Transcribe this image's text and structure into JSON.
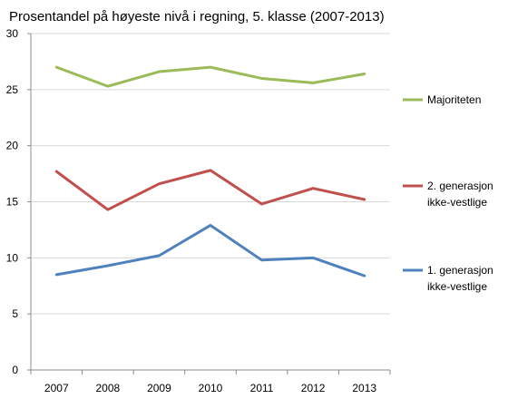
{
  "chart_data": {
    "type": "line",
    "title": "Prosentandel på høyeste nivå i regning, 5. klasse (2007-2013)",
    "categories": [
      "2007",
      "2008",
      "2009",
      "2010",
      "2011",
      "2012",
      "2013"
    ],
    "ylim": [
      0,
      30
    ],
    "yticks": [
      "0",
      "5",
      "10",
      "15",
      "20",
      "25",
      "30"
    ],
    "grid": true,
    "legend_position": "right",
    "series": [
      {
        "name": "Majoriteten",
        "legend_lines": [
          "Majoriteten"
        ],
        "color": "#9bbb59",
        "values": [
          27.0,
          25.3,
          26.6,
          27.0,
          26.0,
          25.6,
          26.4
        ]
      },
      {
        "name": "2. generasjon ikke-vestlige",
        "legend_lines": [
          "2. generasjon",
          "ikke-vestlige"
        ],
        "color": "#c0504d",
        "values": [
          17.7,
          14.3,
          16.6,
          17.8,
          14.8,
          16.2,
          15.2
        ]
      },
      {
        "name": "1. generasjon ikke-vestlige",
        "legend_lines": [
          "1. generasjon",
          "ikke-vestlige"
        ],
        "color": "#4f81bd",
        "values": [
          8.5,
          9.3,
          10.2,
          12.9,
          9.8,
          10.0,
          8.4
        ]
      }
    ]
  }
}
